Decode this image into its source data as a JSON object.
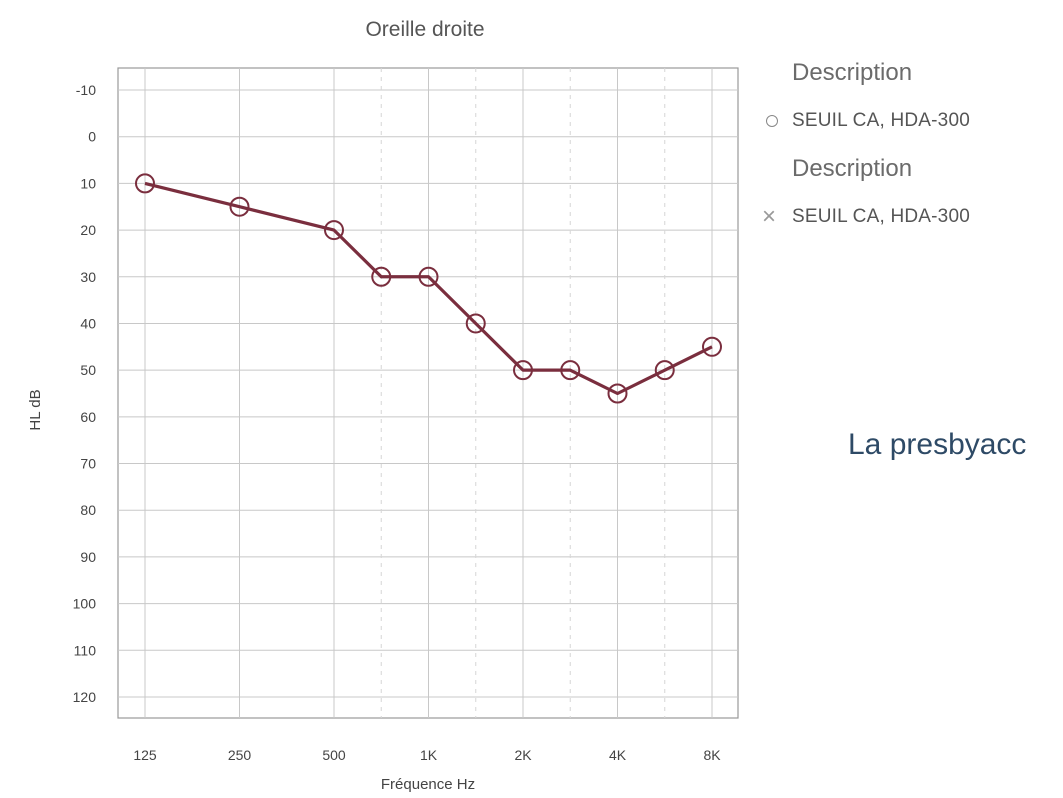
{
  "chart_data": {
    "type": "line",
    "title": "Oreille droite",
    "xlabel": "Fréquence Hz",
    "ylabel": "HL dB",
    "categories": [
      "125",
      "250",
      "500",
      "1K",
      "2K",
      "4K",
      "8K"
    ],
    "x_intermediate": [
      "750",
      "1.5K",
      "3K",
      "6K"
    ],
    "ylim": [
      -10,
      120
    ],
    "y_inverted": true,
    "y_ticks": [
      "-10",
      "0",
      "10",
      "20",
      "30",
      "40",
      "50",
      "60",
      "70",
      "80",
      "90",
      "100",
      "110",
      "120"
    ],
    "grid": true,
    "series": [
      {
        "name": "SEUIL CA, HDA-300",
        "marker": "circle",
        "color": "#7a2e3e",
        "points": [
          {
            "x": "125",
            "y": 10
          },
          {
            "x": "250",
            "y": 15
          },
          {
            "x": "500",
            "y": 20
          },
          {
            "x": "750",
            "y": 30
          },
          {
            "x": "1K",
            "y": 30
          },
          {
            "x": "1.5K",
            "y": 40
          },
          {
            "x": "2K",
            "y": 50
          },
          {
            "x": "3K",
            "y": 50
          },
          {
            "x": "4K",
            "y": 55
          },
          {
            "x": "6K",
            "y": 50
          },
          {
            "x": "8K",
            "y": 45
          }
        ]
      }
    ],
    "legend_position": "right"
  },
  "legend": {
    "heading_1": "Description",
    "entry_1": "SEUIL CA, HDA-300",
    "heading_2": "Description",
    "entry_2": "SEUIL CA, HDA-300"
  },
  "side_text": "La presbyacc"
}
